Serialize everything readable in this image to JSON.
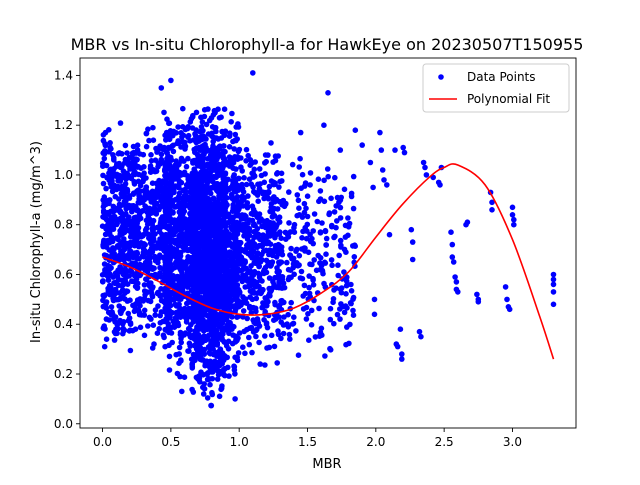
{
  "chart_data": {
    "type": "scatter",
    "title": "MBR vs In-situ Chlorophyll-a for HawkEye on 20230507T150955",
    "xlabel": "MBR",
    "ylabel": "In-situ Chlorophyll-a (mg/m^3)",
    "xlim": [
      -0.165,
      3.465
    ],
    "ylim": [
      -0.017,
      1.47
    ],
    "xticks": [
      0.0,
      0.5,
      1.0,
      1.5,
      2.0,
      2.5,
      3.0
    ],
    "xtick_labels": [
      "0.0",
      "0.5",
      "1.0",
      "1.5",
      "2.0",
      "2.5",
      "3.0"
    ],
    "yticks": [
      0.0,
      0.2,
      0.4,
      0.6,
      0.8,
      1.0,
      1.2,
      1.4
    ],
    "ytick_labels": [
      "0.0",
      "0.2",
      "0.4",
      "0.6",
      "0.8",
      "1.0",
      "1.2",
      "1.4"
    ],
    "grid": false,
    "legend_position": "upper right",
    "series": [
      {
        "name": "Data Points",
        "kind": "scatter",
        "color": "#0000ff",
        "clusters": [
          {
            "x_min": 0.0,
            "x_max": 0.5,
            "y_min": 0.28,
            "y_max": 1.25,
            "count": 900
          },
          {
            "x_min": 0.45,
            "x_max": 1.0,
            "y_min": 0.15,
            "y_max": 1.3,
            "count": 1500
          },
          {
            "x_min": 0.65,
            "x_max": 0.9,
            "y_min": 0.06,
            "y_max": 1.28,
            "count": 900
          },
          {
            "x_min": 0.95,
            "x_max": 1.3,
            "y_min": 0.22,
            "y_max": 1.15,
            "count": 500
          },
          {
            "x_min": 1.3,
            "x_max": 1.85,
            "y_min": 0.22,
            "y_max": 1.1,
            "count": 260
          }
        ],
        "points": [
          {
            "x": 0.05,
            "y": 0.62
          },
          {
            "x": 0.08,
            "y": 0.95
          },
          {
            "x": 0.03,
            "y": 0.34
          },
          {
            "x": 0.5,
            "y": 1.38
          },
          {
            "x": 1.1,
            "y": 1.41
          },
          {
            "x": 0.43,
            "y": 1.35
          },
          {
            "x": 1.65,
            "y": 1.33
          },
          {
            "x": 0.58,
            "y": 0.13
          },
          {
            "x": 0.97,
            "y": 0.1
          },
          {
            "x": 1.45,
            "y": 1.17
          },
          {
            "x": 1.62,
            "y": 1.2
          },
          {
            "x": 1.74,
            "y": 1.1
          },
          {
            "x": 1.85,
            "y": 1.18
          },
          {
            "x": 1.9,
            "y": 1.12
          },
          {
            "x": 1.96,
            "y": 1.05
          },
          {
            "x": 1.98,
            "y": 0.95
          },
          {
            "x": 1.99,
            "y": 0.5
          },
          {
            "x": 1.99,
            "y": 0.44
          },
          {
            "x": 2.03,
            "y": 1.17
          },
          {
            "x": 2.04,
            "y": 1.1
          },
          {
            "x": 2.05,
            "y": 1.02
          },
          {
            "x": 2.06,
            "y": 0.98
          },
          {
            "x": 2.08,
            "y": 0.96
          },
          {
            "x": 2.1,
            "y": 0.76
          },
          {
            "x": 2.14,
            "y": 1.1
          },
          {
            "x": 2.15,
            "y": 0.32
          },
          {
            "x": 2.16,
            "y": 0.31
          },
          {
            "x": 2.18,
            "y": 0.38
          },
          {
            "x": 2.19,
            "y": 0.28
          },
          {
            "x": 2.19,
            "y": 0.26
          },
          {
            "x": 2.2,
            "y": 1.11
          },
          {
            "x": 2.21,
            "y": 1.09
          },
          {
            "x": 2.26,
            "y": 0.78
          },
          {
            "x": 2.27,
            "y": 0.73
          },
          {
            "x": 2.27,
            "y": 0.66
          },
          {
            "x": 2.32,
            "y": 0.37
          },
          {
            "x": 2.33,
            "y": 0.35
          },
          {
            "x": 2.35,
            "y": 1.05
          },
          {
            "x": 2.36,
            "y": 1.03
          },
          {
            "x": 2.37,
            "y": 1.0
          },
          {
            "x": 2.42,
            "y": 0.99
          },
          {
            "x": 2.46,
            "y": 0.97
          },
          {
            "x": 2.47,
            "y": 0.96
          },
          {
            "x": 2.48,
            "y": 1.03
          },
          {
            "x": 2.55,
            "y": 0.77
          },
          {
            "x": 2.56,
            "y": 0.72
          },
          {
            "x": 2.56,
            "y": 0.67
          },
          {
            "x": 2.57,
            "y": 0.65
          },
          {
            "x": 2.58,
            "y": 0.59
          },
          {
            "x": 2.59,
            "y": 0.57
          },
          {
            "x": 2.59,
            "y": 0.54
          },
          {
            "x": 2.6,
            "y": 0.53
          },
          {
            "x": 2.66,
            "y": 0.8
          },
          {
            "x": 2.67,
            "y": 0.81
          },
          {
            "x": 2.74,
            "y": 0.52
          },
          {
            "x": 2.75,
            "y": 0.5
          },
          {
            "x": 2.75,
            "y": 0.49
          },
          {
            "x": 2.84,
            "y": 0.93
          },
          {
            "x": 2.85,
            "y": 0.89
          },
          {
            "x": 2.85,
            "y": 0.86
          },
          {
            "x": 2.95,
            "y": 0.55
          },
          {
            "x": 2.96,
            "y": 0.5
          },
          {
            "x": 2.97,
            "y": 0.47
          },
          {
            "x": 2.98,
            "y": 0.46
          },
          {
            "x": 3.0,
            "y": 0.87
          },
          {
            "x": 3.0,
            "y": 0.84
          },
          {
            "x": 3.01,
            "y": 0.82
          },
          {
            "x": 3.01,
            "y": 0.8
          },
          {
            "x": 3.3,
            "y": 0.6
          },
          {
            "x": 3.3,
            "y": 0.58
          },
          {
            "x": 3.3,
            "y": 0.56
          },
          {
            "x": 3.3,
            "y": 0.53
          },
          {
            "x": 3.3,
            "y": 0.48
          }
        ]
      },
      {
        "name": "Polynomial Fit",
        "kind": "line",
        "color": "#ff0000",
        "x": [
          0.0,
          0.2,
          0.4,
          0.6,
          0.8,
          1.0,
          1.2,
          1.4,
          1.6,
          1.8,
          2.0,
          2.2,
          2.4,
          2.5,
          2.6,
          2.8,
          3.0,
          3.2,
          3.3
        ],
        "y": [
          0.67,
          0.63,
          0.575,
          0.515,
          0.465,
          0.44,
          0.44,
          0.465,
          0.525,
          0.61,
          0.75,
          0.885,
          0.995,
          1.03,
          1.04,
          0.96,
          0.74,
          0.43,
          0.26
        ]
      }
    ]
  }
}
